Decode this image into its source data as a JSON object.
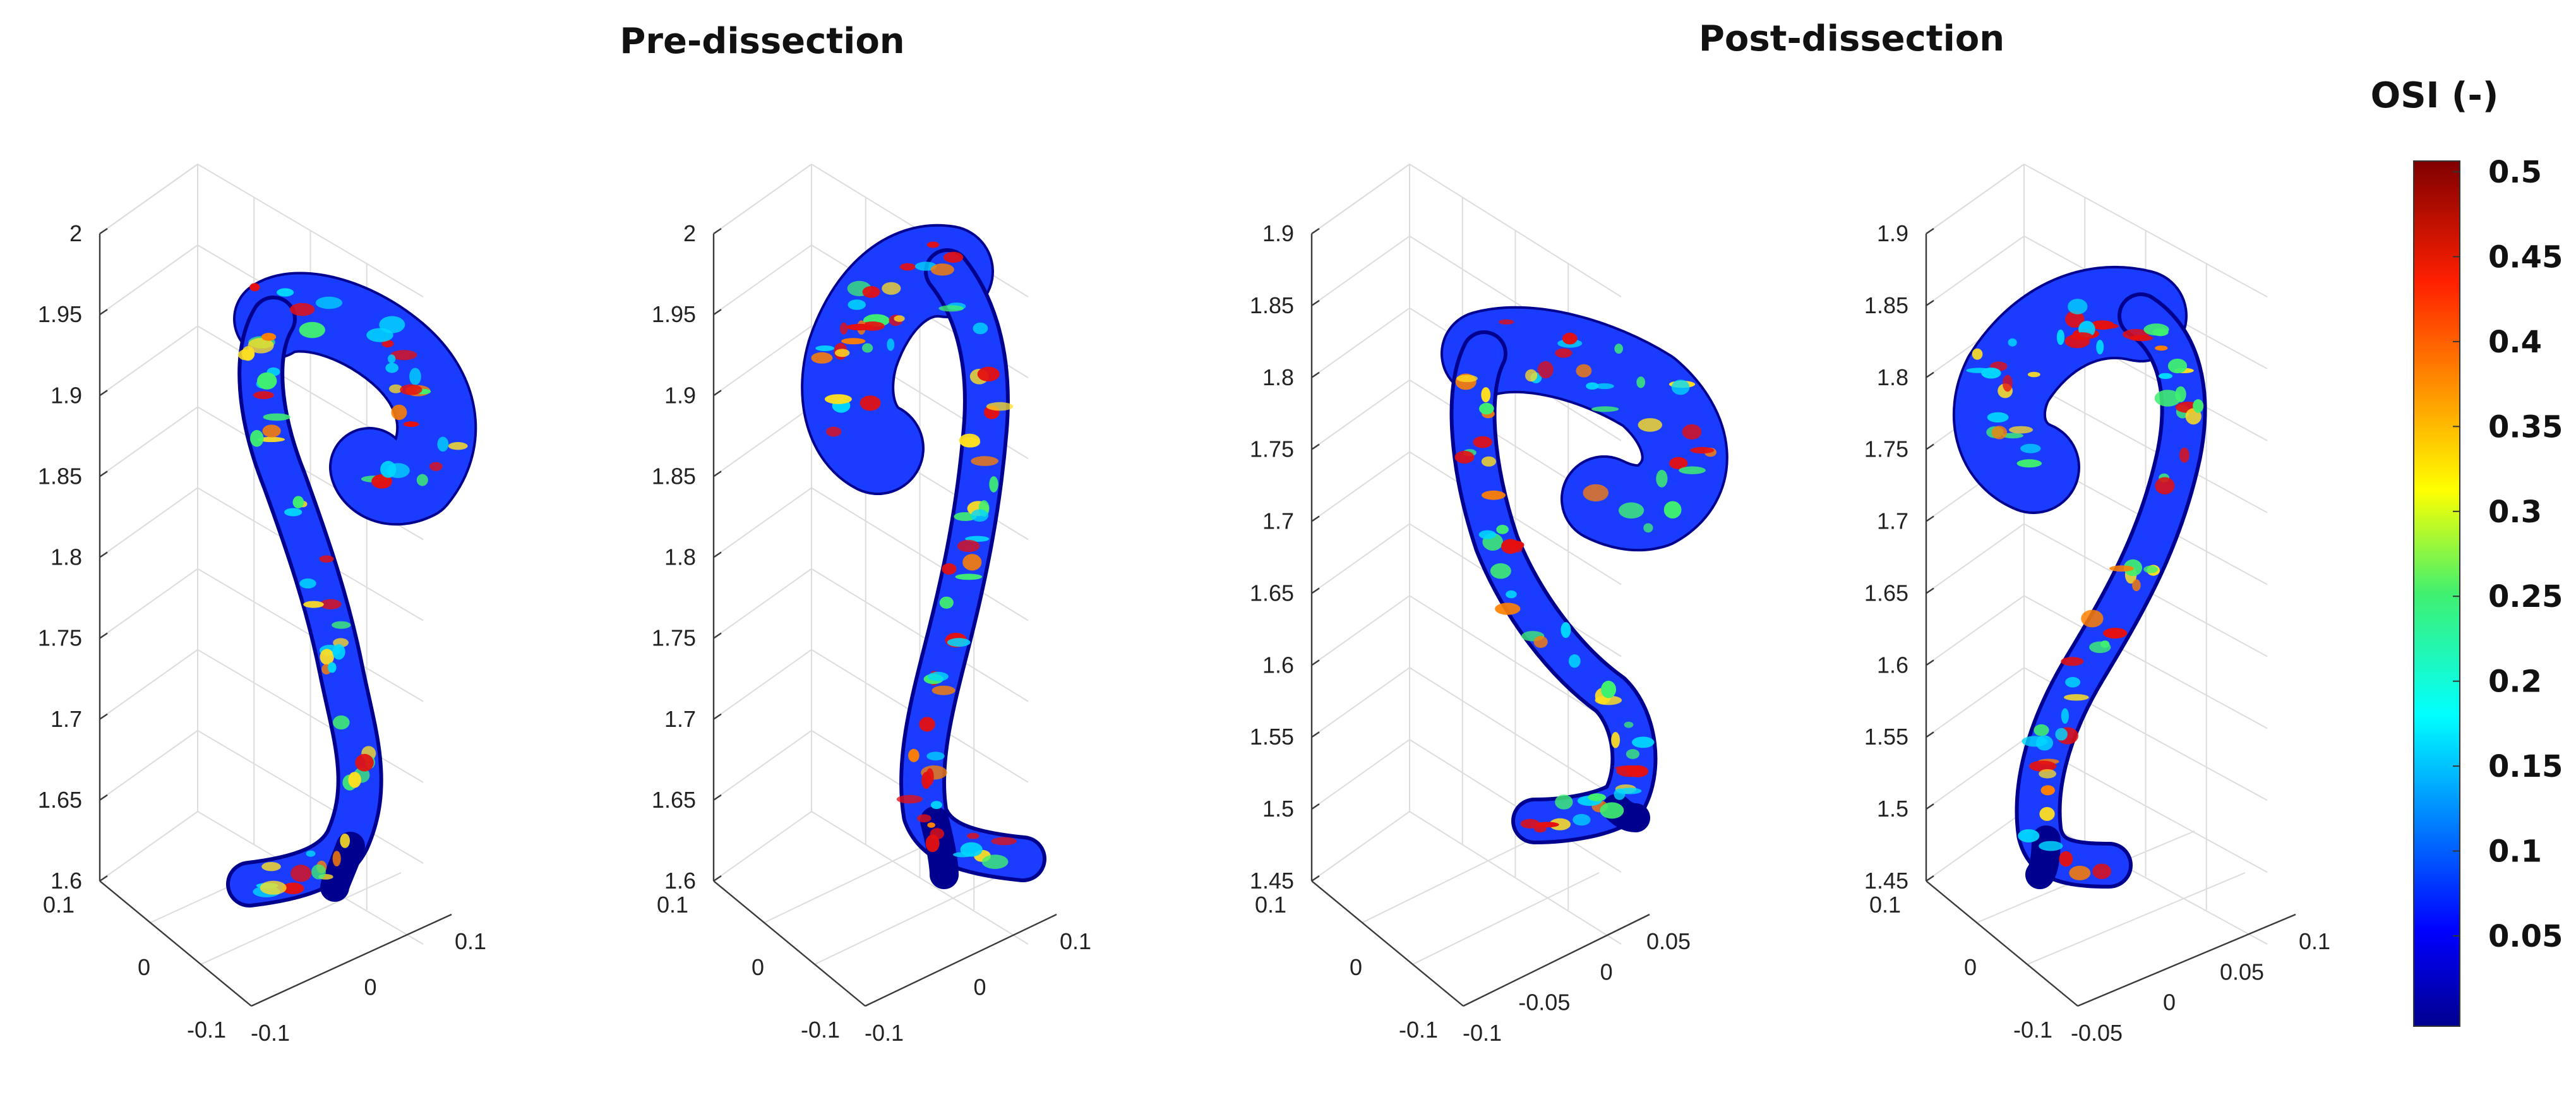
{
  "headings": {
    "pre": "Pre-dissection",
    "post": "Post-dissection"
  },
  "colorbar": {
    "title": "OSI (-)",
    "ticks": [
      "0.5",
      "0.45",
      "0.4",
      "0.35",
      "0.3",
      "0.25",
      "0.2",
      "0.15",
      "0.1",
      "0.05"
    ],
    "colormap": "jet",
    "range": [
      0,
      0.5
    ]
  },
  "panels": [
    {
      "group": "pre",
      "z_ticks": [
        "2",
        "1.95",
        "1.9",
        "1.85",
        "1.8",
        "1.75",
        "1.7",
        "1.65",
        "1.6"
      ],
      "y_ticks": [
        "0.1",
        "0",
        "-0.1"
      ],
      "x_ticks": [
        "-0.1",
        "0",
        "0.1"
      ]
    },
    {
      "group": "pre",
      "z_ticks": [
        "2",
        "1.95",
        "1.9",
        "1.85",
        "1.8",
        "1.75",
        "1.7",
        "1.65",
        "1.6"
      ],
      "y_ticks": [
        "0.1",
        "0",
        "-0.1"
      ],
      "x_ticks": [
        "-0.1",
        "0",
        "0.1"
      ]
    },
    {
      "group": "post",
      "z_ticks": [
        "1.9",
        "1.85",
        "1.8",
        "1.75",
        "1.7",
        "1.65",
        "1.6",
        "1.55",
        "1.5",
        "1.45"
      ],
      "y_ticks": [
        "0.1",
        "0",
        "-0.1"
      ],
      "x_ticks": [
        "-0.1",
        "-0.05",
        "0",
        "0.05"
      ]
    },
    {
      "group": "post",
      "z_ticks": [
        "1.9",
        "1.85",
        "1.8",
        "1.75",
        "1.7",
        "1.65",
        "1.6",
        "1.55",
        "1.5",
        "1.45"
      ],
      "y_ticks": [
        "0.1",
        "0",
        "-0.1"
      ],
      "x_ticks": [
        "-0.05",
        "0",
        "0.05",
        "0.1"
      ]
    }
  ],
  "colors": {
    "dark_blue": "#00008f",
    "blue": "#1a3cff",
    "cyan": "#00d8ff",
    "green": "#40f070",
    "yellow": "#ffe020",
    "orange": "#ff8000",
    "red": "#e51010",
    "dark_red": "#7f0000"
  }
}
